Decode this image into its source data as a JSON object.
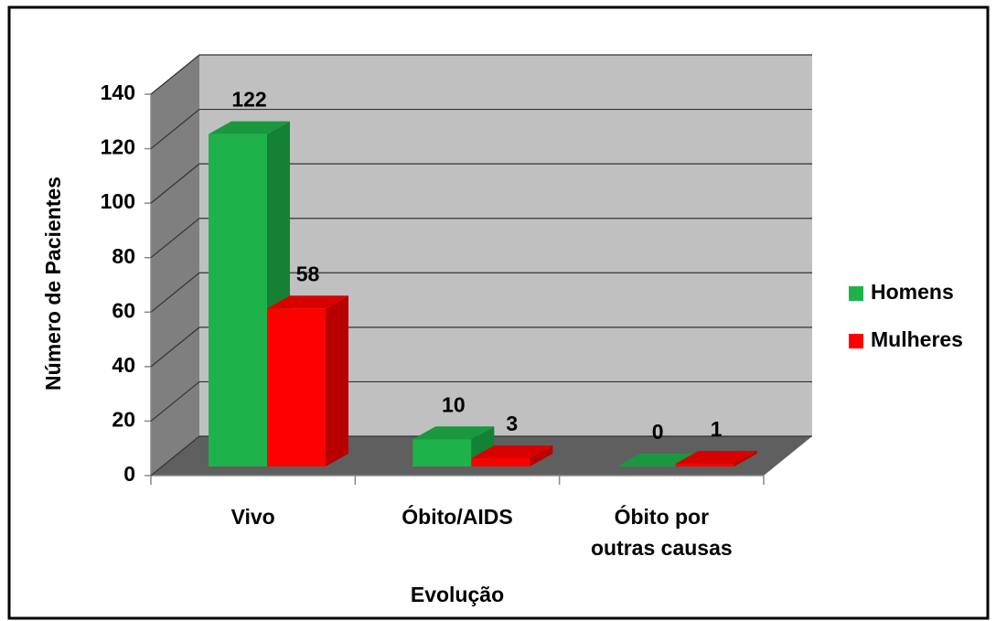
{
  "chart_data": {
    "type": "bar3d",
    "x_label": "Evolução",
    "y_label": "Número de Pacientes",
    "categories": [
      "Vivo",
      "Óbito/AIDS",
      "Óbito por outras causas"
    ],
    "series": [
      {
        "name": "Homens",
        "color": "#1db34a",
        "values": [
          122,
          10,
          0
        ]
      },
      {
        "name": "Mulheres",
        "color": "#ff0000",
        "values": [
          58,
          3,
          1
        ]
      }
    ],
    "ylim": [
      0,
      140
    ],
    "yticks": [
      0,
      20,
      40,
      60,
      80,
      100,
      120,
      140
    ],
    "grid": true,
    "legend": "right"
  }
}
